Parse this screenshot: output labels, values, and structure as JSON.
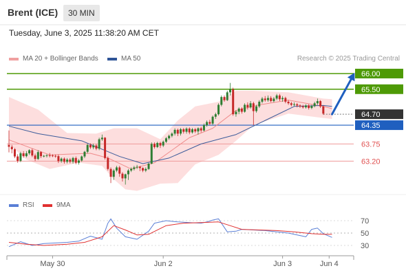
{
  "header": {
    "symbol": "Brent (ICE)",
    "interval": "30 MIN"
  },
  "timestamp": "Tuesday, June 3, 2025 11:38:20 AM CET",
  "legend": {
    "ma20": "MA 20 + Bollinger Bands",
    "ma50": "MA 50",
    "credit": "Research © 2025 Trading Central"
  },
  "rsi_legend": {
    "rsi": "RSI",
    "ma9": "9MA"
  },
  "colors": {
    "green": "#4e9a06",
    "blue": "#1f5fbf",
    "red": "#e05050",
    "dark": "#333333",
    "candle_up": "#2e7d32",
    "candle_down": "#c62828",
    "band": "#fdd8d8",
    "ma20": "#ef8a8a",
    "ma50": "#3b5b9a",
    "rsi": "#5a7fd6",
    "ma9": "#e03030"
  },
  "chart_data": [
    {
      "type": "line",
      "subtype": "candlestick",
      "x_ticks": [
        "May 30",
        "Jun 2",
        "Jun 3",
        "Jun 4"
      ],
      "ylim": [
        62.4,
        66.7
      ],
      "candles": [
        [
          63.72,
          63.66,
          64.18,
          63.48
        ],
        [
          63.66,
          63.58,
          63.72,
          63.45
        ],
        [
          63.58,
          63.35,
          63.62,
          63.3
        ],
        [
          63.35,
          63.21,
          63.42,
          63.15
        ],
        [
          63.21,
          63.45,
          63.5,
          63.17
        ],
        [
          63.45,
          63.36,
          63.52,
          63.31
        ],
        [
          63.36,
          63.45,
          63.52,
          63.32
        ],
        [
          63.45,
          63.55,
          63.58,
          63.4
        ],
        [
          63.55,
          63.38,
          63.6,
          63.33
        ],
        [
          63.38,
          63.27,
          63.44,
          63.2
        ],
        [
          63.27,
          63.49,
          63.55,
          63.24
        ],
        [
          63.49,
          63.36,
          63.52,
          63.3
        ],
        [
          63.36,
          63.37,
          63.4,
          63.32
        ],
        [
          63.37,
          63.39,
          63.42,
          63.32
        ],
        [
          63.39,
          63.38,
          63.46,
          63.32
        ],
        [
          63.38,
          63.37,
          63.42,
          63.33
        ],
        [
          63.37,
          63.36,
          63.41,
          63.31
        ],
        [
          63.36,
          63.2,
          63.41,
          63.14
        ],
        [
          63.2,
          63.28,
          63.32,
          63.15
        ],
        [
          63.28,
          63.18,
          63.32,
          63.12
        ],
        [
          63.18,
          63.25,
          63.3,
          63.13
        ],
        [
          63.25,
          63.18,
          63.3,
          63.13
        ],
        [
          63.18,
          63.3,
          63.34,
          63.12
        ],
        [
          63.3,
          63.15,
          63.35,
          63.1
        ],
        [
          63.15,
          63.22,
          63.27,
          63.09
        ],
        [
          63.22,
          63.35,
          63.38,
          63.18
        ],
        [
          63.35,
          63.5,
          63.53,
          63.3
        ],
        [
          63.5,
          63.72,
          63.75,
          63.45
        ],
        [
          63.72,
          63.64,
          63.77,
          63.59
        ],
        [
          63.64,
          63.7,
          63.76,
          63.58
        ],
        [
          63.7,
          63.6,
          63.75,
          63.55
        ],
        [
          63.6,
          63.9,
          63.95,
          63.55
        ],
        [
          63.9,
          63.95,
          64.05,
          63.85
        ],
        [
          63.95,
          63.3,
          63.97,
          63.25
        ],
        [
          63.3,
          62.95,
          63.35,
          62.9
        ],
        [
          62.95,
          62.7,
          63.0,
          62.5
        ],
        [
          62.7,
          62.9,
          62.95,
          62.6
        ],
        [
          62.9,
          63.0,
          63.05,
          62.85
        ],
        [
          63.0,
          62.8,
          63.05,
          62.7
        ],
        [
          62.8,
          62.65,
          62.85,
          62.55
        ],
        [
          62.65,
          62.78,
          62.8,
          62.45
        ],
        [
          62.78,
          62.9,
          62.95,
          62.6
        ],
        [
          62.9,
          62.95,
          63.0,
          62.85
        ],
        [
          62.95,
          63.0,
          63.05,
          62.9
        ],
        [
          63.0,
          63.02,
          63.08,
          62.95
        ],
        [
          63.02,
          62.98,
          63.05,
          62.88
        ],
        [
          62.98,
          62.9,
          63.0,
          62.85
        ],
        [
          62.9,
          62.95,
          63.0,
          62.85
        ],
        [
          62.95,
          63.12,
          63.15,
          62.92
        ],
        [
          63.12,
          63.75,
          63.8,
          63.1
        ],
        [
          63.75,
          63.65,
          63.8,
          63.6
        ],
        [
          63.65,
          63.78,
          63.82,
          63.62
        ],
        [
          63.78,
          63.7,
          63.82,
          63.62
        ],
        [
          63.7,
          63.82,
          63.86,
          63.65
        ],
        [
          63.82,
          63.93,
          63.97,
          63.78
        ],
        [
          63.93,
          64.01,
          64.05,
          63.88
        ],
        [
          64.01,
          64.08,
          64.12,
          63.96
        ],
        [
          64.08,
          64.2,
          64.25,
          64.02
        ],
        [
          64.2,
          64.08,
          64.24,
          64.0
        ],
        [
          64.08,
          64.22,
          64.26,
          64.02
        ],
        [
          64.22,
          64.14,
          64.26,
          64.08
        ],
        [
          64.14,
          64.24,
          64.28,
          64.08
        ],
        [
          64.24,
          64.12,
          64.28,
          64.06
        ],
        [
          64.12,
          64.22,
          64.26,
          64.08
        ],
        [
          64.22,
          64.15,
          64.26,
          64.1
        ],
        [
          64.15,
          64.25,
          64.28,
          64.05
        ],
        [
          64.25,
          64.18,
          64.3,
          64.12
        ],
        [
          64.18,
          64.35,
          64.4,
          64.15
        ],
        [
          64.35,
          64.45,
          64.5,
          64.3
        ],
        [
          64.45,
          64.4,
          64.52,
          64.35
        ],
        [
          64.4,
          64.62,
          64.66,
          64.36
        ],
        [
          64.62,
          64.7,
          64.75,
          64.55
        ],
        [
          64.7,
          65.0,
          65.05,
          64.66
        ],
        [
          65.0,
          65.25,
          65.3,
          64.95
        ],
        [
          65.25,
          65.15,
          65.3,
          65.1
        ],
        [
          65.15,
          65.4,
          65.45,
          65.12
        ],
        [
          65.4,
          65.5,
          65.7,
          65.3
        ],
        [
          65.5,
          64.7,
          65.55,
          64.65
        ],
        [
          64.7,
          64.78,
          64.83,
          64.62
        ],
        [
          64.78,
          64.88,
          64.92,
          64.7
        ],
        [
          64.88,
          64.78,
          64.92,
          64.72
        ],
        [
          64.78,
          65.0,
          65.05,
          64.75
        ],
        [
          65.0,
          64.92,
          65.08,
          64.85
        ],
        [
          64.92,
          65.05,
          65.12,
          64.88
        ],
        [
          65.05,
          64.8,
          65.1,
          64.35
        ],
        [
          64.8,
          64.95,
          65.0,
          64.75
        ],
        [
          64.95,
          65.1,
          65.15,
          64.9
        ],
        [
          65.1,
          65.2,
          65.25,
          65.05
        ],
        [
          65.2,
          65.15,
          65.28,
          65.1
        ],
        [
          65.15,
          65.22,
          65.3,
          65.1
        ],
        [
          65.22,
          65.12,
          65.28,
          65.08
        ],
        [
          65.12,
          65.2,
          65.25,
          65.08
        ],
        [
          65.2,
          65.3,
          65.35,
          65.15
        ],
        [
          65.3,
          65.18,
          65.35,
          65.12
        ],
        [
          65.18,
          65.22,
          65.28,
          65.1
        ],
        [
          65.22,
          65.1,
          65.26,
          65.05
        ],
        [
          65.1,
          65.05,
          65.15,
          65.0
        ],
        [
          65.05,
          65.0,
          65.1,
          64.95
        ],
        [
          65.0,
          65.02,
          65.08,
          64.96
        ],
        [
          65.02,
          64.98,
          65.06,
          64.92
        ],
        [
          64.98,
          64.95,
          65.02,
          64.9
        ],
        [
          64.95,
          64.92,
          65.0,
          64.88
        ],
        [
          64.92,
          64.98,
          65.02,
          64.88
        ],
        [
          64.98,
          64.9,
          65.02,
          64.85
        ],
        [
          64.9,
          64.96,
          65.0,
          64.86
        ],
        [
          64.96,
          65.05,
          65.1,
          64.92
        ],
        [
          65.05,
          65.12,
          65.2,
          65.0
        ],
        [
          65.12,
          64.95,
          65.15,
          64.9
        ],
        [
          64.95,
          64.72,
          64.98,
          64.68
        ]
      ],
      "ma20": [
        [
          0,
          63.88
        ],
        [
          14,
          63.4
        ],
        [
          28,
          63.45
        ],
        [
          34,
          63.3
        ],
        [
          42,
          62.95
        ],
        [
          50,
          63.15
        ],
        [
          62,
          63.95
        ],
        [
          70,
          64.25
        ],
        [
          78,
          64.82
        ],
        [
          86,
          65.0
        ],
        [
          96,
          65.15
        ],
        [
          108,
          64.95
        ],
        [
          111,
          64.88
        ]
      ],
      "ma50": [
        [
          0,
          64.32
        ],
        [
          10,
          64.08
        ],
        [
          25,
          63.85
        ],
        [
          38,
          63.35
        ],
        [
          46,
          63.12
        ],
        [
          55,
          63.3
        ],
        [
          66,
          63.75
        ],
        [
          78,
          64.05
        ],
        [
          88,
          64.5
        ],
        [
          98,
          64.95
        ],
        [
          108,
          64.98
        ],
        [
          111,
          64.95
        ]
      ],
      "bb_upper": [
        [
          0,
          65.25
        ],
        [
          10,
          64.85
        ],
        [
          20,
          64.1
        ],
        [
          30,
          64.08
        ],
        [
          36,
          64.25
        ],
        [
          44,
          64.25
        ],
        [
          52,
          63.9
        ],
        [
          58,
          64.5
        ],
        [
          64,
          64.95
        ],
        [
          72,
          65.1
        ],
        [
          78,
          65.45
        ],
        [
          84,
          65.45
        ],
        [
          96,
          65.4
        ],
        [
          108,
          65.2
        ],
        [
          111,
          65.18
        ]
      ],
      "bb_lower": [
        [
          0,
          63.75
        ],
        [
          6,
          63.25
        ],
        [
          14,
          62.95
        ],
        [
          24,
          63.15
        ],
        [
          32,
          63.05
        ],
        [
          36,
          62.62
        ],
        [
          40,
          62.3
        ],
        [
          44,
          62.25
        ],
        [
          52,
          62.48
        ],
        [
          58,
          62.5
        ],
        [
          64,
          63.1
        ],
        [
          72,
          63.4
        ],
        [
          78,
          63.85
        ],
        [
          84,
          64.35
        ],
        [
          96,
          64.72
        ],
        [
          108,
          64.58
        ],
        [
          111,
          64.55
        ]
      ],
      "levels": [
        {
          "value": 66.0,
          "label": "66.00",
          "style": "green-line"
        },
        {
          "value": 65.5,
          "label": "65.50",
          "style": "green-line"
        },
        {
          "value": 64.7,
          "label": "64.70",
          "style": "current-price"
        },
        {
          "value": 64.35,
          "label": "64.35",
          "style": "pivot-blue"
        },
        {
          "value": 63.75,
          "label": "63.75",
          "style": "red-line"
        },
        {
          "value": 63.2,
          "label": "63.20",
          "style": "red-line"
        }
      ],
      "projection": {
        "from": [
          64.7,
          111
        ],
        "to": 66.0
      }
    },
    {
      "type": "line",
      "title": "RSI",
      "ylim": [
        20,
        80
      ],
      "y_ticks": [
        "70",
        "50",
        "30"
      ],
      "reference_line": 50,
      "series": [
        {
          "name": "RSI",
          "points": [
            [
              0,
              28
            ],
            [
              4,
              36
            ],
            [
              8,
              30
            ],
            [
              12,
              33
            ],
            [
              16,
              34
            ],
            [
              20,
              35
            ],
            [
              24,
              37
            ],
            [
              28,
              45
            ],
            [
              32,
              40
            ],
            [
              34,
              66
            ],
            [
              35,
              73
            ],
            [
              37,
              58
            ],
            [
              40,
              44
            ],
            [
              44,
              40
            ],
            [
              48,
              53
            ],
            [
              50,
              66
            ],
            [
              54,
              70
            ],
            [
              58,
              68
            ],
            [
              62,
              67
            ],
            [
              66,
              66
            ],
            [
              68,
              68
            ],
            [
              70,
              71
            ],
            [
              72,
              73
            ],
            [
              75,
              52
            ],
            [
              78,
              53
            ],
            [
              80,
              56
            ],
            [
              84,
              55
            ],
            [
              88,
              54
            ],
            [
              92,
              52
            ],
            [
              96,
              50
            ],
            [
              100,
              46
            ],
            [
              102,
              44
            ],
            [
              104,
              56
            ],
            [
              106,
              58
            ],
            [
              108,
              49
            ],
            [
              111,
              43
            ]
          ]
        },
        {
          "name": "9MA",
          "points": [
            [
              0,
              35
            ],
            [
              6,
              32
            ],
            [
              12,
              30
            ],
            [
              20,
              32
            ],
            [
              26,
              35
            ],
            [
              32,
              44
            ],
            [
              36,
              62
            ],
            [
              40,
              55
            ],
            [
              44,
              47
            ],
            [
              48,
              48
            ],
            [
              54,
              62
            ],
            [
              60,
              66
            ],
            [
              66,
              67
            ],
            [
              72,
              68
            ],
            [
              76,
              62
            ],
            [
              80,
              56
            ],
            [
              86,
              55
            ],
            [
              92,
              54
            ],
            [
              98,
              52
            ],
            [
              104,
              49
            ],
            [
              108,
              48
            ],
            [
              111,
              48
            ]
          ]
        }
      ]
    }
  ]
}
